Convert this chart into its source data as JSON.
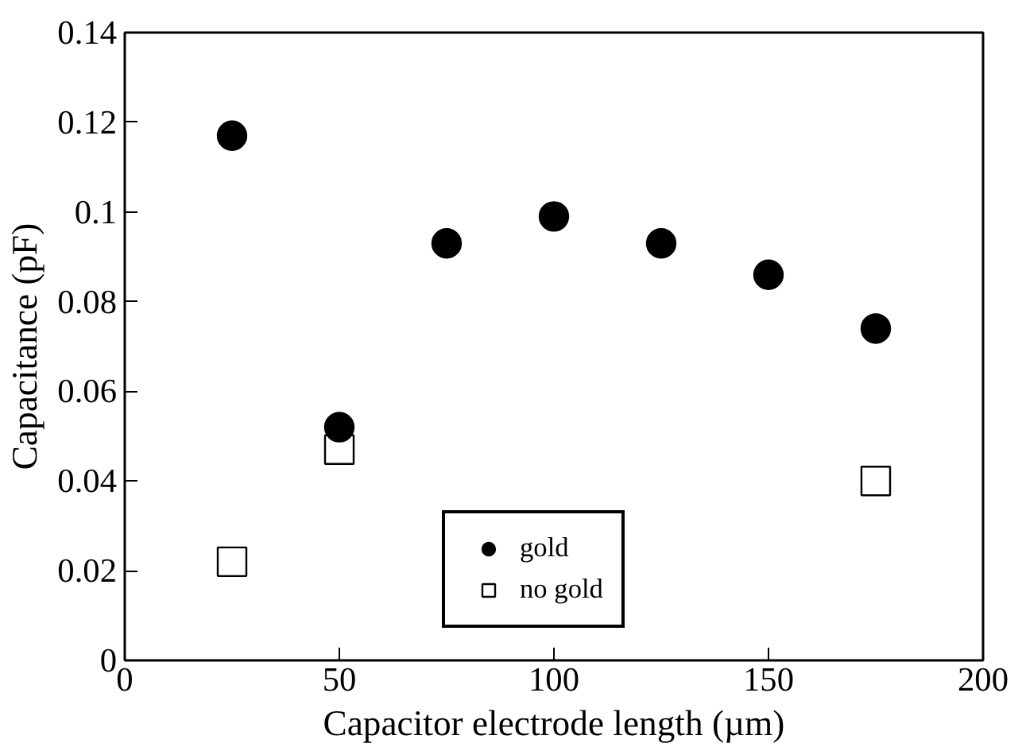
{
  "chart_data": {
    "type": "scatter",
    "xlabel": "Capacitor electrode length (µm)",
    "ylabel": "Capacitance (pF)",
    "xlim": [
      0,
      200
    ],
    "ylim": [
      0,
      0.14
    ],
    "xticks": [
      0,
      50,
      100,
      150,
      200
    ],
    "yticks": [
      0,
      0.02,
      0.04,
      0.06,
      0.08,
      0.1,
      0.12,
      0.14
    ],
    "grid": false,
    "legend": "bottom right",
    "series": [
      {
        "name": "gold",
        "color": "#000000",
        "marker": "circle",
        "x": [
          25,
          50,
          75,
          100,
          125,
          150,
          175
        ],
        "values": [
          0.117,
          0.052,
          0.093,
          0.099,
          0.093,
          0.086,
          0.074
        ]
      },
      {
        "name": "no gold",
        "color": "#000000",
        "marker": "square",
        "x": [
          25,
          50,
          175
        ],
        "values": [
          0.022,
          0.047,
          0.04
        ]
      }
    ]
  }
}
